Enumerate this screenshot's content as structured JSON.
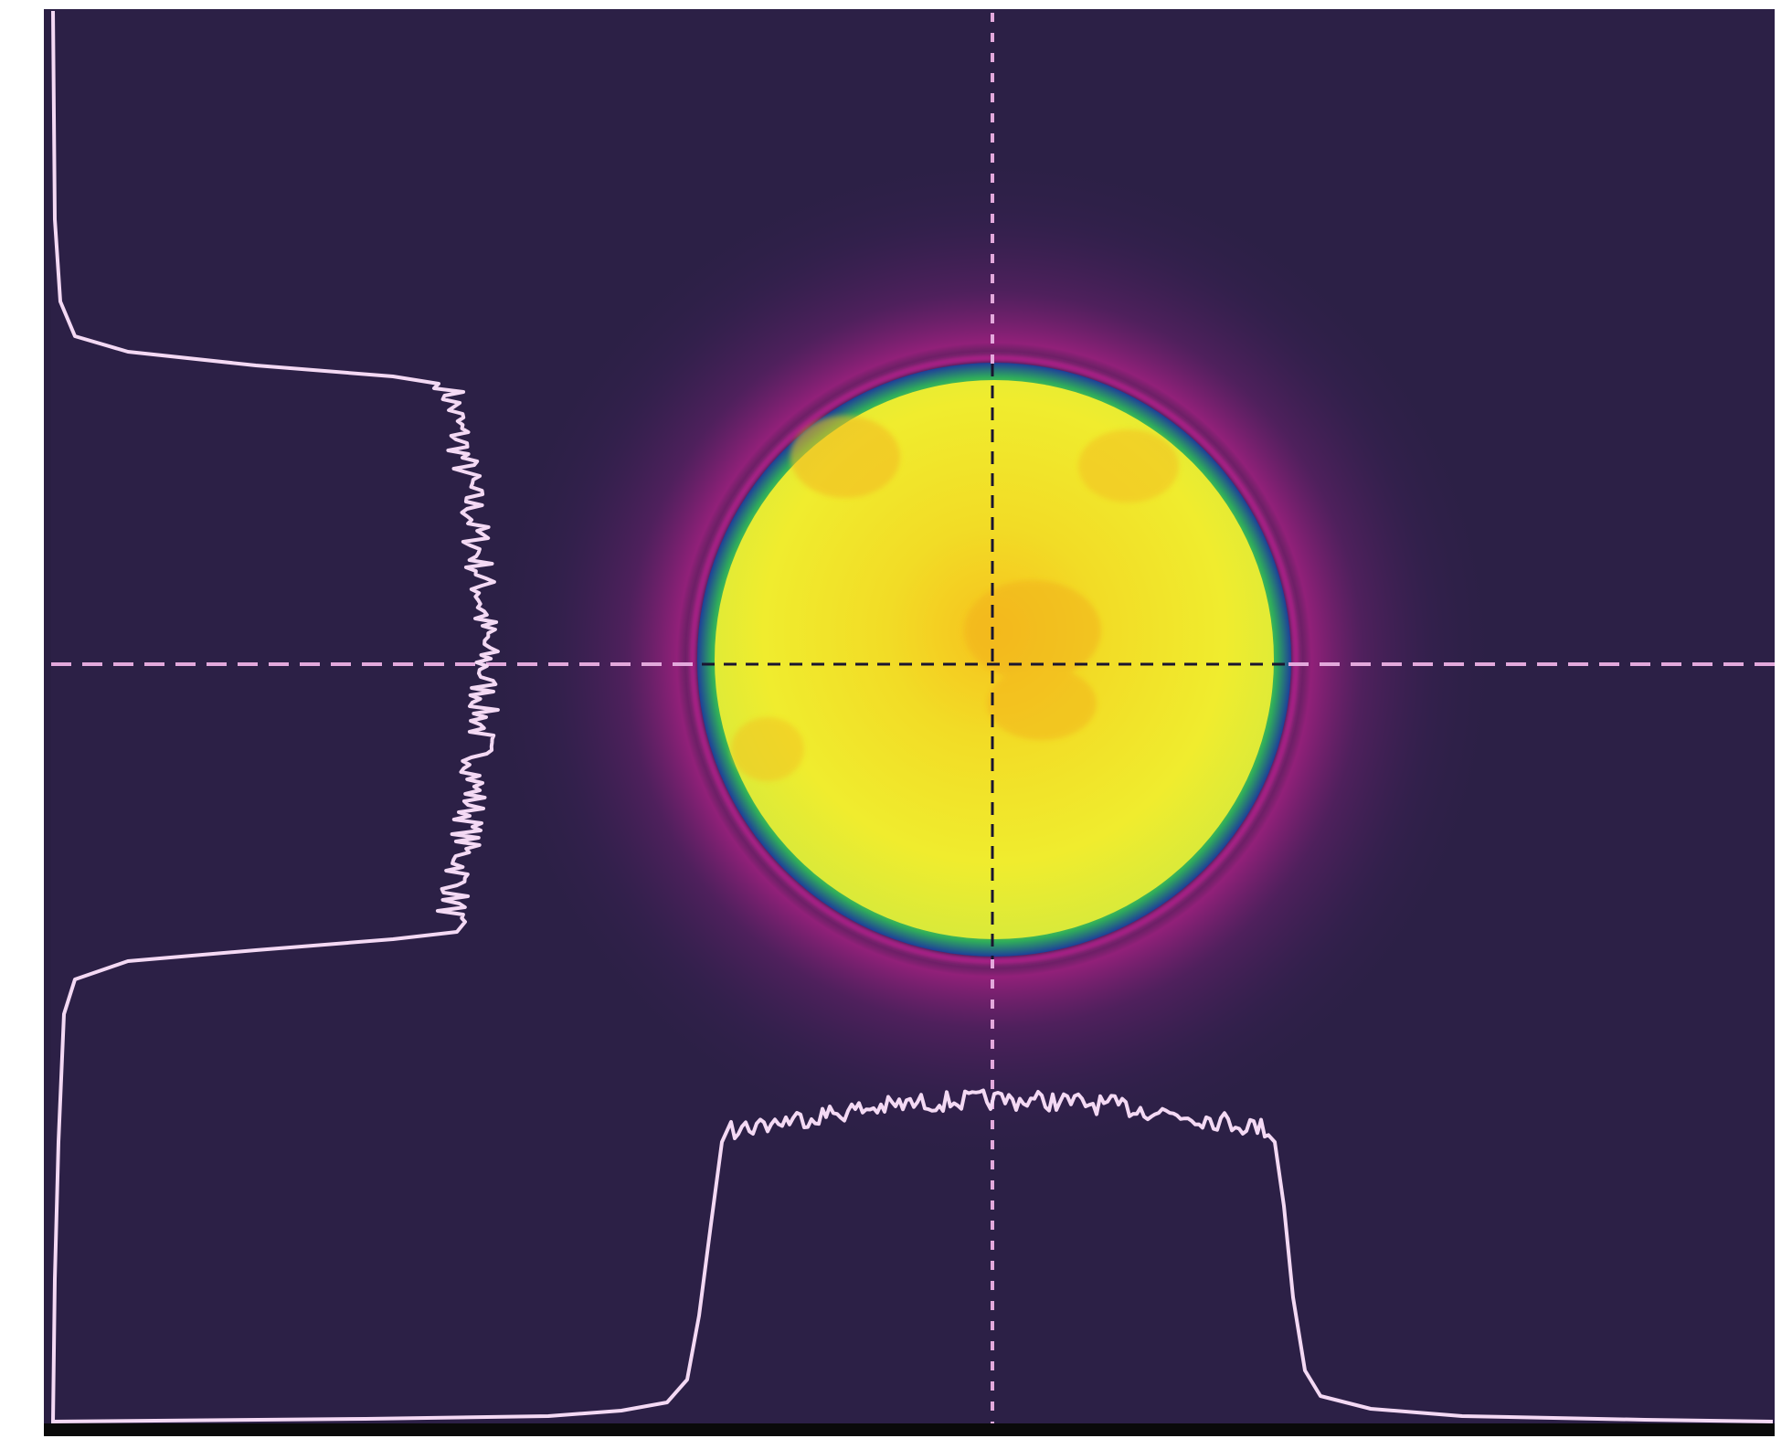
{
  "image": {
    "kind": "laser beam profile (false-color intensity map with line profiles)",
    "beam_shape": "round flat-top",
    "colors": {
      "background": "#2c2046",
      "frame": "#ffffff",
      "axis_bar": "#0a0a0a",
      "beam_core": "#f2e52a",
      "beam_hot": "#f6c21e",
      "beam_edge_green": "#2fae5a",
      "beam_edge_blue": "#1e3f9a",
      "beam_halo": "#a31a7e",
      "profile_trace": "#f4d9f4",
      "crosshair_dashed": "#e3a9dc",
      "crosshair_dark": "#1a1530"
    },
    "overlays": [
      "horizontal-crosshair",
      "vertical-crosshair",
      "horizontal-line-profile",
      "vertical-line-profile"
    ]
  }
}
